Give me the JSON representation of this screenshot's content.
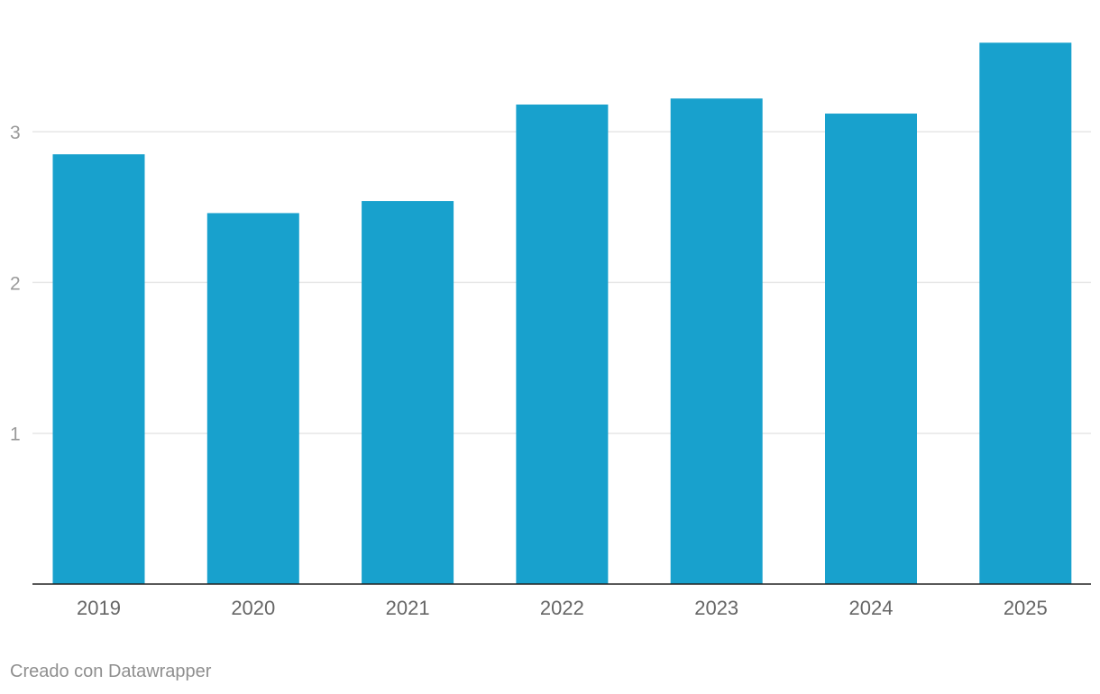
{
  "chart_data": {
    "type": "bar",
    "title": "",
    "xlabel": "",
    "ylabel": "",
    "categories": [
      "2019",
      "2020",
      "2021",
      "2022",
      "2023",
      "2024",
      "2025"
    ],
    "values": [
      2.85,
      2.46,
      2.54,
      3.18,
      3.22,
      3.12,
      3.59
    ],
    "ylim": [
      0,
      3.6
    ],
    "yticks": [
      1,
      2,
      3
    ],
    "grid": true,
    "bar_color": "#18a1cd"
  },
  "footer": {
    "credit": "Creado con Datawrapper"
  }
}
